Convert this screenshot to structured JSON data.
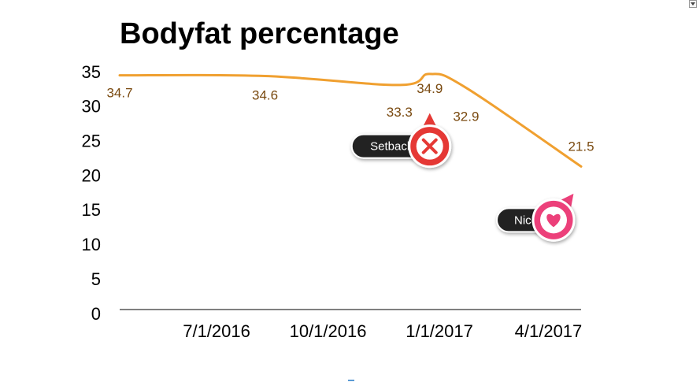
{
  "chart_data": {
    "type": "line",
    "title": "Bodyfat percentage",
    "xlabel": "",
    "ylabel": "",
    "ylim": [
      0,
      35
    ],
    "yticks": [
      0,
      5,
      10,
      15,
      20,
      25,
      30,
      35
    ],
    "xlim": [
      "2016-04-12",
      "2017-04-28"
    ],
    "xticks": [
      {
        "date": "2016-07-01",
        "label": "7/1/2016"
      },
      {
        "date": "2016-10-01",
        "label": "10/1/2016"
      },
      {
        "date": "2017-01-01",
        "label": "1/1/2017"
      },
      {
        "date": "2017-04-01",
        "label": "4/1/2017"
      }
    ],
    "grid": false,
    "legend": "none",
    "series": [
      {
        "color": "#f0a030",
        "points": [
          {
            "x": "2016-04-12",
            "y": 34.7,
            "label": "34.7"
          },
          {
            "x": "2016-08-10",
            "y": 34.6,
            "label": "34.6"
          },
          {
            "x": "2016-11-29",
            "y": 33.3,
            "label": "33.3"
          },
          {
            "x": "2016-12-24",
            "y": 34.9,
            "label": "34.9"
          },
          {
            "x": "2017-01-23",
            "y": 32.9,
            "label": "32.9"
          },
          {
            "x": "2017-04-28",
            "y": 21.5,
            "label": "21.5"
          }
        ]
      }
    ],
    "annotations": [
      {
        "text": "Setback",
        "icon": "x-icon",
        "color": "#e53935",
        "point_x": "2016-12-24",
        "point_y": 29.0
      },
      {
        "text": "Nice",
        "icon": "heart-icon",
        "color": "#ec407a",
        "point_x": "2017-04-28",
        "point_y": 19.0
      }
    ]
  }
}
